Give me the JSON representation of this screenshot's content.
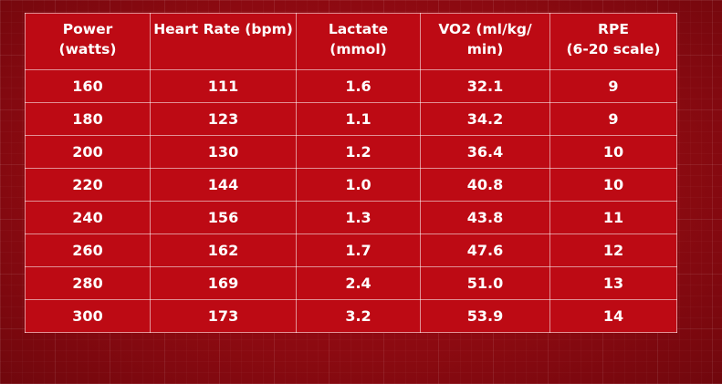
{
  "chart_data": {
    "type": "table",
    "columns": [
      "Power\n(watts)",
      "Heart Rate (bpm)",
      "Lactate\n(mmol)",
      "VO2 (ml/kg/\nmin)",
      "RPE\n(6-20 scale)"
    ],
    "rows": [
      [
        "160",
        "111",
        "1.6",
        "32.1",
        "9"
      ],
      [
        "180",
        "123",
        "1.1",
        "34.2",
        "9"
      ],
      [
        "200",
        "130",
        "1.2",
        "36.4",
        "10"
      ],
      [
        "220",
        "144",
        "1.0",
        "40.8",
        "10"
      ],
      [
        "240",
        "156",
        "1.3",
        "43.8",
        "11"
      ],
      [
        "260",
        "162",
        "1.7",
        "47.6",
        "12"
      ],
      [
        "280",
        "169",
        "2.4",
        "51.0",
        "13"
      ],
      [
        "300",
        "173",
        "3.2",
        "53.9",
        "14"
      ]
    ]
  },
  "colors": {
    "table_bg": "#bd0a14",
    "page_bg": "#8f0b12",
    "text": "#ffffff"
  }
}
